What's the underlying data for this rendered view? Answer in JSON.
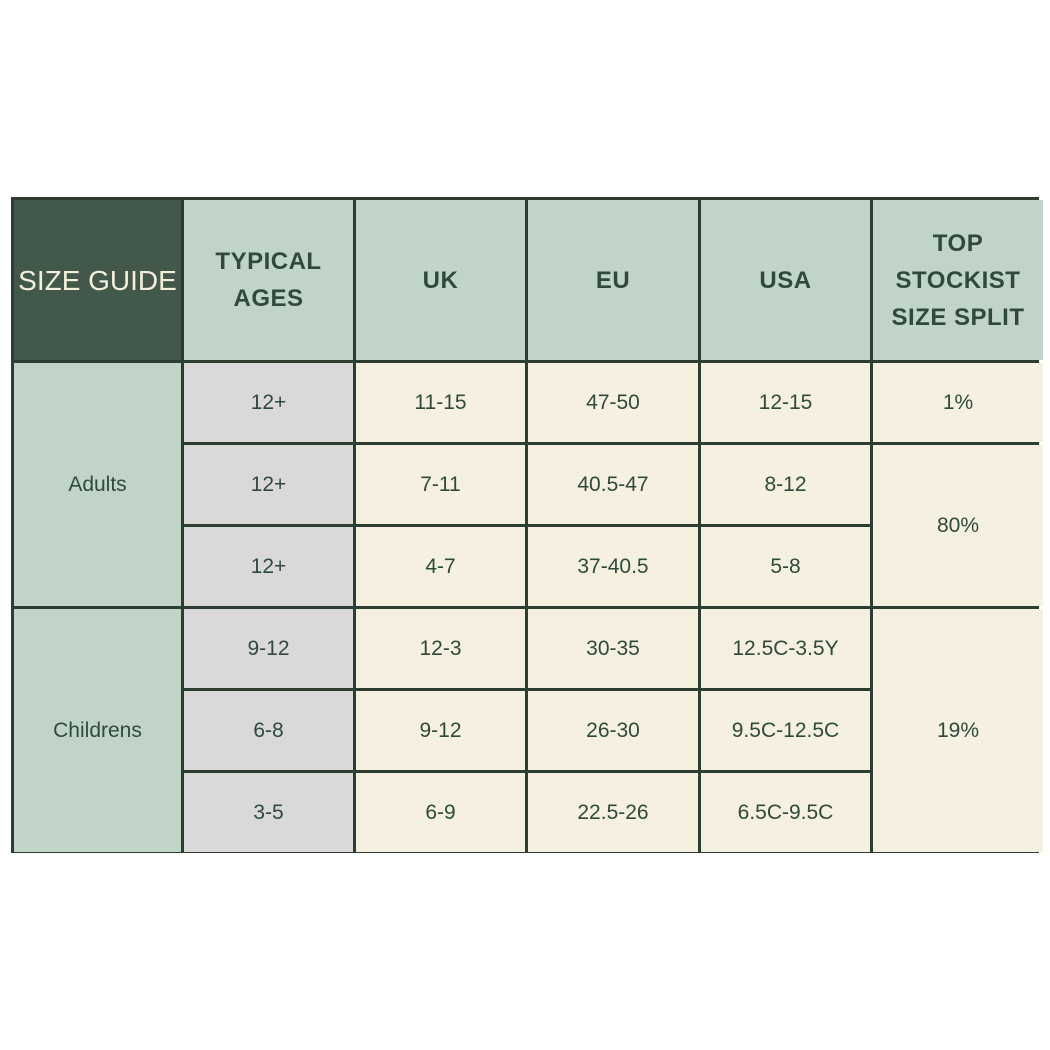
{
  "header": {
    "corner": "SIZE GUIDE",
    "columns": [
      "TYPICAL AGES",
      "UK",
      "EU",
      "USA",
      "TOP STOCKIST SIZE SPLIT"
    ]
  },
  "groups": [
    {
      "label": "Adults",
      "rows": [
        {
          "age": "12+",
          "uk": "11-15",
          "eu": "47-50",
          "usa": "12-15"
        },
        {
          "age": "12+",
          "uk": "7-11",
          "eu": "40.5-47",
          "usa": "8-12"
        },
        {
          "age": "12+",
          "uk": "4-7",
          "eu": "37-40.5",
          "usa": "5-8"
        }
      ]
    },
    {
      "label": "Childrens",
      "rows": [
        {
          "age": "9-12",
          "uk": "12-3",
          "eu": "30-35",
          "usa": "12.5C-3.5Y"
        },
        {
          "age": "6-8",
          "uk": "9-12",
          "eu": "26-30",
          "usa": "9.5C-12.5C"
        },
        {
          "age": "3-5",
          "uk": "6-9",
          "eu": "22.5-26",
          "usa": "6.5C-9.5C"
        }
      ]
    }
  ],
  "split": [
    "1%",
    "80%",
    "19%"
  ],
  "colors": {
    "dark": "#42584a",
    "header": "#c1d4c8",
    "age": "#d9d9d9",
    "cell": "#f5f0df",
    "border": "#2c3d32",
    "text": "#2f4a3b"
  }
}
